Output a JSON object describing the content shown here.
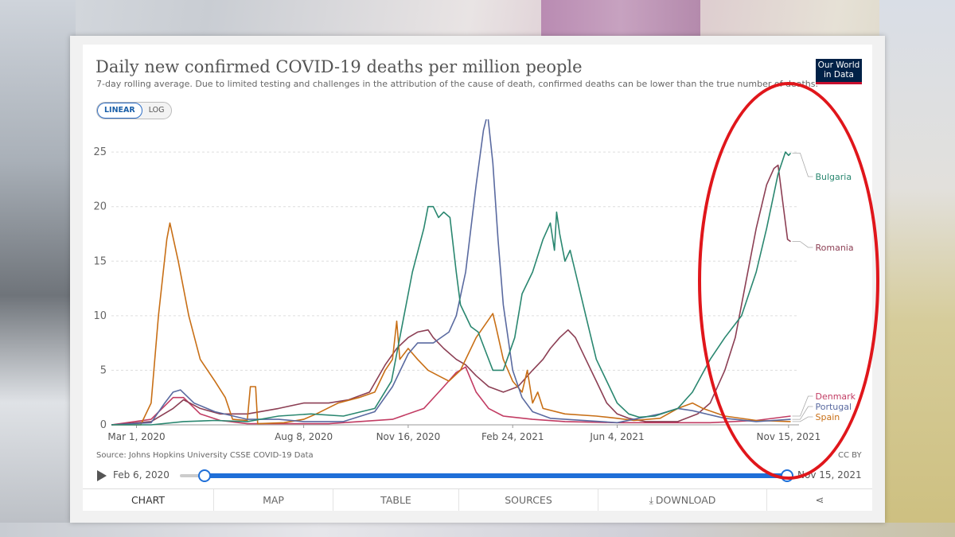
{
  "header": {
    "title": "Daily new confirmed COVID-19 deaths per million people",
    "subtitle": "7-day rolling average. Due to limited testing and challenges in the attribution of the cause of death, confirmed deaths can be lower than the true number of deaths."
  },
  "logo": {
    "line1": "Our World",
    "line2": "in Data"
  },
  "scale_toggle": {
    "linear": "LINEAR",
    "log": "LOG",
    "selected": "LINEAR"
  },
  "footer": {
    "source": "Source: Johns Hopkins University CSSE COVID-19 Data",
    "license": "CC BY"
  },
  "timeline": {
    "start_label": "Feb 6, 2020",
    "end_label": "Nov 15, 2021"
  },
  "tabs": [
    "CHART",
    "MAP",
    "TABLE",
    "SOURCES",
    "DOWNLOAD"
  ],
  "colors": {
    "bulgaria": "#2a8770",
    "romania": "#8c3f54",
    "denmark": "#c23c63",
    "portugal": "#5a6aa0",
    "spain": "#c86f16",
    "highlight": "#e0161b"
  },
  "chart_data": {
    "type": "line",
    "title": "Daily new confirmed COVID-19 deaths per million people",
    "ylim": [
      0,
      28
    ],
    "yticks": [
      0,
      5,
      10,
      15,
      20,
      25
    ],
    "xlim": [
      "2020-02-06",
      "2021-11-25"
    ],
    "xticks": [
      {
        "date": "2020-03-01",
        "label": "Mar 1, 2020"
      },
      {
        "date": "2020-08-08",
        "label": "Aug 8, 2020"
      },
      {
        "date": "2020-11-16",
        "label": "Nov 16, 2020"
      },
      {
        "date": "2021-02-24",
        "label": "Feb 24, 2021"
      },
      {
        "date": "2021-06-04",
        "label": "Jun 4, 2021"
      },
      {
        "date": "2021-11-15",
        "label": "Nov 15, 2021"
      }
    ],
    "grid": true,
    "legend": "right",
    "series": [
      {
        "name": "Bulgaria",
        "points": [
          [
            "2020-02-06",
            0
          ],
          [
            "2020-03-15",
            0
          ],
          [
            "2020-04-15",
            0.3
          ],
          [
            "2020-05-15",
            0.4
          ],
          [
            "2020-06-15",
            0.3
          ],
          [
            "2020-07-15",
            0.8
          ],
          [
            "2020-08-15",
            1
          ],
          [
            "2020-09-15",
            0.8
          ],
          [
            "2020-10-15",
            1.5
          ],
          [
            "2020-10-31",
            4
          ],
          [
            "2020-11-08",
            8
          ],
          [
            "2020-11-20",
            14
          ],
          [
            "2020-12-01",
            18
          ],
          [
            "2020-12-05",
            20
          ],
          [
            "2020-12-10",
            20
          ],
          [
            "2020-12-15",
            19
          ],
          [
            "2020-12-20",
            19.5
          ],
          [
            "2020-12-26",
            19
          ],
          [
            "2021-01-01",
            14
          ],
          [
            "2021-01-05",
            11
          ],
          [
            "2021-01-15",
            9
          ],
          [
            "2021-01-22",
            8.5
          ],
          [
            "2021-01-30",
            6.5
          ],
          [
            "2021-02-05",
            5
          ],
          [
            "2021-02-15",
            5
          ],
          [
            "2021-02-26",
            8
          ],
          [
            "2021-03-05",
            12
          ],
          [
            "2021-03-15",
            14
          ],
          [
            "2021-03-25",
            17
          ],
          [
            "2021-04-01",
            18.5
          ],
          [
            "2021-04-05",
            16
          ],
          [
            "2021-04-07",
            19.5
          ],
          [
            "2021-04-10",
            17.5
          ],
          [
            "2021-04-15",
            15
          ],
          [
            "2021-04-20",
            16
          ],
          [
            "2021-04-25",
            14
          ],
          [
            "2021-05-05",
            10
          ],
          [
            "2021-05-15",
            6
          ],
          [
            "2021-05-25",
            4
          ],
          [
            "2021-06-04",
            2
          ],
          [
            "2021-06-15",
            1
          ],
          [
            "2021-06-25",
            0.7
          ],
          [
            "2021-07-10",
            0.8
          ],
          [
            "2021-08-01",
            1.5
          ],
          [
            "2021-08-15",
            3
          ],
          [
            "2021-09-01",
            6
          ],
          [
            "2021-09-15",
            8
          ],
          [
            "2021-10-01",
            10
          ],
          [
            "2021-10-15",
            14
          ],
          [
            "2021-10-25",
            18
          ],
          [
            "2021-11-05",
            23
          ],
          [
            "2021-11-12",
            25
          ],
          [
            "2021-11-15",
            24.7
          ],
          [
            "2021-11-17",
            24.9
          ]
        ]
      },
      {
        "name": "Romania",
        "points": [
          [
            "2020-02-06",
            0
          ],
          [
            "2020-03-15",
            0.3
          ],
          [
            "2020-04-05",
            1.5
          ],
          [
            "2020-04-15",
            2.3
          ],
          [
            "2020-05-01",
            1.5
          ],
          [
            "2020-05-20",
            1
          ],
          [
            "2020-06-15",
            1
          ],
          [
            "2020-07-15",
            1.5
          ],
          [
            "2020-08-08",
            2
          ],
          [
            "2020-09-01",
            2
          ],
          [
            "2020-09-20",
            2.3
          ],
          [
            "2020-10-10",
            3
          ],
          [
            "2020-10-25",
            5.5
          ],
          [
            "2020-11-05",
            7
          ],
          [
            "2020-11-16",
            8
          ],
          [
            "2020-11-25",
            8.5
          ],
          [
            "2020-12-05",
            8.7
          ],
          [
            "2020-12-10",
            8
          ],
          [
            "2020-12-20",
            7
          ],
          [
            "2021-01-01",
            6
          ],
          [
            "2021-01-10",
            5.5
          ],
          [
            "2021-01-20",
            4.5
          ],
          [
            "2021-02-01",
            3.5
          ],
          [
            "2021-02-15",
            3
          ],
          [
            "2021-03-01",
            3.5
          ],
          [
            "2021-03-15",
            5
          ],
          [
            "2021-03-25",
            6
          ],
          [
            "2021-04-01",
            7
          ],
          [
            "2021-04-10",
            8
          ],
          [
            "2021-04-18",
            8.7
          ],
          [
            "2021-04-25",
            8
          ],
          [
            "2021-05-05",
            6
          ],
          [
            "2021-05-15",
            4
          ],
          [
            "2021-05-25",
            2
          ],
          [
            "2021-06-04",
            1
          ],
          [
            "2021-06-15",
            0.6
          ],
          [
            "2021-07-01",
            0.3
          ],
          [
            "2021-08-01",
            0.3
          ],
          [
            "2021-08-20",
            1
          ],
          [
            "2021-09-01",
            2
          ],
          [
            "2021-09-15",
            5
          ],
          [
            "2021-09-25",
            8
          ],
          [
            "2021-10-05",
            13
          ],
          [
            "2021-10-15",
            18
          ],
          [
            "2021-10-25",
            22
          ],
          [
            "2021-11-01",
            23.5
          ],
          [
            "2021-11-05",
            23.8
          ],
          [
            "2021-11-10",
            20
          ],
          [
            "2021-11-14",
            17
          ],
          [
            "2021-11-17",
            16.8
          ]
        ]
      },
      {
        "name": "Denmark",
        "points": [
          [
            "2020-02-06",
            0
          ],
          [
            "2020-03-15",
            0.5
          ],
          [
            "2020-04-05",
            2.5
          ],
          [
            "2020-04-15",
            2.5
          ],
          [
            "2020-05-01",
            1
          ],
          [
            "2020-05-20",
            0.4
          ],
          [
            "2020-06-15",
            0.1
          ],
          [
            "2020-09-01",
            0.1
          ],
          [
            "2020-11-01",
            0.5
          ],
          [
            "2020-12-01",
            1.5
          ],
          [
            "2020-12-20",
            3.5
          ],
          [
            "2021-01-01",
            4.8
          ],
          [
            "2021-01-10",
            5.3
          ],
          [
            "2021-01-20",
            3
          ],
          [
            "2021-02-01",
            1.5
          ],
          [
            "2021-02-15",
            0.8
          ],
          [
            "2021-03-15",
            0.5
          ],
          [
            "2021-04-15",
            0.3
          ],
          [
            "2021-06-04",
            0.2
          ],
          [
            "2021-09-01",
            0.2
          ],
          [
            "2021-10-15",
            0.4
          ],
          [
            "2021-11-17",
            0.8
          ]
        ]
      },
      {
        "name": "Portugal",
        "points": [
          [
            "2020-02-06",
            0
          ],
          [
            "2020-03-15",
            0.2
          ],
          [
            "2020-03-28",
            2
          ],
          [
            "2020-04-05",
            3
          ],
          [
            "2020-04-12",
            3.2
          ],
          [
            "2020-04-25",
            2
          ],
          [
            "2020-05-15",
            1.2
          ],
          [
            "2020-06-15",
            0.5
          ],
          [
            "2020-07-15",
            0.5
          ],
          [
            "2020-08-08",
            0.3
          ],
          [
            "2020-09-15",
            0.3
          ],
          [
            "2020-10-15",
            1.2
          ],
          [
            "2020-11-01",
            3.5
          ],
          [
            "2020-11-16",
            6.5
          ],
          [
            "2020-11-25",
            7.5
          ],
          [
            "2020-12-10",
            7.5
          ],
          [
            "2020-12-25",
            8.5
          ],
          [
            "2021-01-01",
            10
          ],
          [
            "2021-01-10",
            14
          ],
          [
            "2021-01-20",
            22
          ],
          [
            "2021-01-27",
            27
          ],
          [
            "2021-01-31",
            28.5
          ],
          [
            "2021-02-05",
            24
          ],
          [
            "2021-02-10",
            17
          ],
          [
            "2021-02-15",
            11
          ],
          [
            "2021-02-24",
            5
          ],
          [
            "2021-03-05",
            2.5
          ],
          [
            "2021-03-15",
            1.2
          ],
          [
            "2021-04-01",
            0.6
          ],
          [
            "2021-06-04",
            0.2
          ],
          [
            "2021-07-15",
            1
          ],
          [
            "2021-08-01",
            1.5
          ],
          [
            "2021-08-15",
            1.3
          ],
          [
            "2021-09-15",
            0.6
          ],
          [
            "2021-10-15",
            0.3
          ],
          [
            "2021-11-17",
            0.5
          ]
        ]
      },
      {
        "name": "Spain",
        "points": [
          [
            "2020-02-06",
            0
          ],
          [
            "2020-03-05",
            0
          ],
          [
            "2020-03-15",
            2
          ],
          [
            "2020-03-22",
            10
          ],
          [
            "2020-03-30",
            17
          ],
          [
            "2020-04-02",
            18.5
          ],
          [
            "2020-04-10",
            15
          ],
          [
            "2020-04-20",
            10
          ],
          [
            "2020-05-01",
            6
          ],
          [
            "2020-05-15",
            4
          ],
          [
            "2020-05-25",
            2.5
          ],
          [
            "2020-06-01",
            0.5
          ],
          [
            "2020-06-15",
            0.4
          ],
          [
            "2020-06-18",
            3.5
          ],
          [
            "2020-06-23",
            3.5
          ],
          [
            "2020-06-25",
            0.1
          ],
          [
            "2020-07-20",
            0.2
          ],
          [
            "2020-08-08",
            0.5
          ],
          [
            "2020-08-20",
            1
          ],
          [
            "2020-09-10",
            2
          ],
          [
            "2020-09-30",
            2.5
          ],
          [
            "2020-10-15",
            3
          ],
          [
            "2020-10-25",
            5
          ],
          [
            "2020-11-01",
            6
          ],
          [
            "2020-11-05",
            9.5
          ],
          [
            "2020-11-08",
            6
          ],
          [
            "2020-11-16",
            7
          ],
          [
            "2020-11-25",
            6
          ],
          [
            "2020-12-05",
            5
          ],
          [
            "2020-12-15",
            4.5
          ],
          [
            "2020-12-25",
            4
          ],
          [
            "2021-01-05",
            5
          ],
          [
            "2021-01-20",
            8
          ],
          [
            "2021-02-05",
            10.2
          ],
          [
            "2021-02-08",
            9
          ],
          [
            "2021-02-15",
            6
          ],
          [
            "2021-02-24",
            4
          ],
          [
            "2021-03-05",
            3
          ],
          [
            "2021-03-10",
            5
          ],
          [
            "2021-03-15",
            2
          ],
          [
            "2021-03-20",
            3
          ],
          [
            "2021-03-25",
            1.5
          ],
          [
            "2021-04-15",
            1
          ],
          [
            "2021-05-15",
            0.8
          ],
          [
            "2021-06-04",
            0.6
          ],
          [
            "2021-06-20",
            0.4
          ],
          [
            "2021-07-15",
            0.6
          ],
          [
            "2021-08-01",
            1.5
          ],
          [
            "2021-08-15",
            2
          ],
          [
            "2021-08-25",
            1.5
          ],
          [
            "2021-09-15",
            0.8
          ],
          [
            "2021-10-15",
            0.4
          ],
          [
            "2021-11-17",
            0.3
          ]
        ]
      }
    ]
  }
}
